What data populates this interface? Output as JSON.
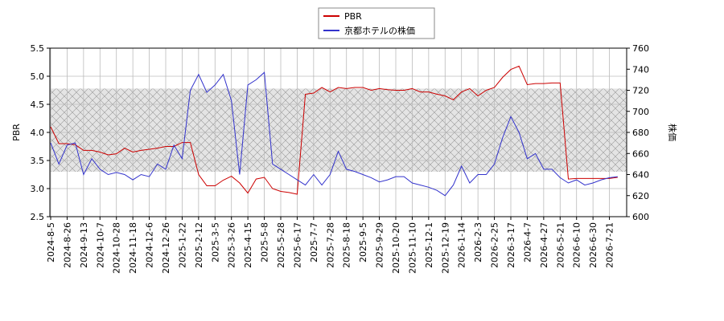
{
  "chart_data": {
    "type": "line",
    "x": [
      "2024-8-5",
      "2024-8-15",
      "2024-8-26",
      "2024-9-4",
      "2024-9-13",
      "2024-9-25",
      "2024-10-7",
      "2024-10-17",
      "2024-10-28",
      "2024-11-7",
      "2024-11-18",
      "2024-11-27",
      "2024-12-6",
      "2024-12-16",
      "2024-12-26",
      "2025-1-10",
      "2025-1-22",
      "2025-2-3",
      "2025-2-12",
      "2025-2-21",
      "2025-3-5",
      "2025-3-14",
      "2025-3-26",
      "2025-4-4",
      "2025-4-15",
      "2025-4-24",
      "2025-5-8",
      "2025-5-19",
      "2025-5-28",
      "2025-6-6",
      "2025-6-17",
      "2025-6-26",
      "2025-7-7",
      "2025-7-16",
      "2025-7-28",
      "2025-8-6",
      "2025-8-18",
      "2025-8-27",
      "2025-9-5",
      "2025-9-17",
      "2025-9-29",
      "2025-10-9",
      "2025-10-20",
      "2025-10-30",
      "2025-11-10",
      "2025-11-19",
      "2025-12-1",
      "2025-12-10",
      "2025-12-19",
      "2025-12-30",
      "2026-1-14",
      "2026-1-23",
      "2026-2-3",
      "2026-2-13",
      "2026-2-25",
      "2026-3-6",
      "2026-3-17",
      "2026-3-27",
      "2026-4-7",
      "2026-4-16",
      "2026-4-27",
      "2026-5-11",
      "2026-5-21",
      "2026-6-1",
      "2026-6-10",
      "2026-6-19",
      "2026-6-30",
      "2026-7-9",
      "2026-7-21",
      "2026-7-31"
    ],
    "xticks": [
      "2024-8-5",
      "2024-8-26",
      "2024-9-13",
      "2024-10-7",
      "2024-10-28",
      "2024-11-18",
      "2024-12-6",
      "2024-12-26",
      "2025-1-22",
      "2025-2-12",
      "2025-3-5",
      "2025-3-26",
      "2025-4-15",
      "2025-5-8",
      "2025-5-28",
      "2025-6-17",
      "2025-7-7",
      "2025-7-28",
      "2025-8-18",
      "2025-9-5",
      "2025-9-29",
      "2025-10-20",
      "2025-11-10",
      "2025-12-1",
      "2025-12-19",
      "2026-1-14",
      "2026-2-3",
      "2026-2-25",
      "2026-3-17",
      "2026-4-7",
      "2026-4-27",
      "2026-5-21",
      "2026-6-10",
      "2026-6-30",
      "2026-7-21"
    ],
    "series": [
      {
        "name": "PBR",
        "color": "#cc0000",
        "values": [
          4.1,
          3.8,
          3.8,
          3.78,
          3.68,
          3.68,
          3.65,
          3.6,
          3.62,
          3.72,
          3.65,
          3.68,
          3.7,
          3.72,
          3.75,
          3.75,
          3.82,
          3.82,
          3.25,
          3.05,
          3.05,
          3.15,
          3.22,
          3.1,
          2.92,
          3.17,
          3.2,
          3.0,
          2.95,
          2.93,
          2.9,
          4.68,
          4.7,
          4.8,
          4.72,
          4.8,
          4.78,
          4.8,
          4.8,
          4.75,
          4.78,
          4.76,
          4.75,
          4.75,
          4.78,
          4.72,
          4.72,
          4.68,
          4.65,
          4.58,
          4.72,
          4.78,
          4.65,
          4.75,
          4.8,
          4.98,
          5.12,
          5.18,
          4.85,
          4.87,
          4.87,
          4.88,
          4.88,
          3.17,
          3.18,
          3.18,
          3.18,
          3.18,
          3.18,
          3.2
        ]
      },
      {
        "name": "京都ホテルの株価",
        "color": "#3333cc",
        "axis": "y2",
        "values": [
          670,
          650,
          668,
          670,
          640,
          655,
          645,
          640,
          642,
          640,
          635,
          640,
          638,
          650,
          645,
          668,
          655,
          720,
          735,
          718,
          725,
          735,
          710,
          640,
          725,
          730,
          737,
          650,
          645,
          640,
          635,
          630,
          640,
          630,
          640,
          662,
          645,
          643,
          640,
          637,
          633,
          635,
          638,
          638,
          632,
          630,
          628,
          625,
          620,
          630,
          648,
          632,
          640,
          640,
          650,
          675,
          695,
          680,
          655,
          660,
          645,
          645,
          637,
          632,
          635,
          630,
          632,
          635,
          637,
          638
        ]
      }
    ],
    "ylabel": "PBR",
    "y2label": "株価",
    "ylim": [
      2.5,
      5.5
    ],
    "yticks": [
      2.5,
      {
        "value": 3,
        "label": "3.0"
      },
      3.5,
      {
        "value": 4,
        "label": "4.0"
      },
      4.5,
      {
        "value": 5,
        "label": "5.0"
      },
      5.5
    ],
    "y2lim": [
      600,
      760
    ],
    "y2ticks": [
      600,
      620,
      640,
      660,
      680,
      700,
      720,
      740,
      760
    ],
    "band": [
      3.3,
      4.78
    ],
    "grid": true
  }
}
